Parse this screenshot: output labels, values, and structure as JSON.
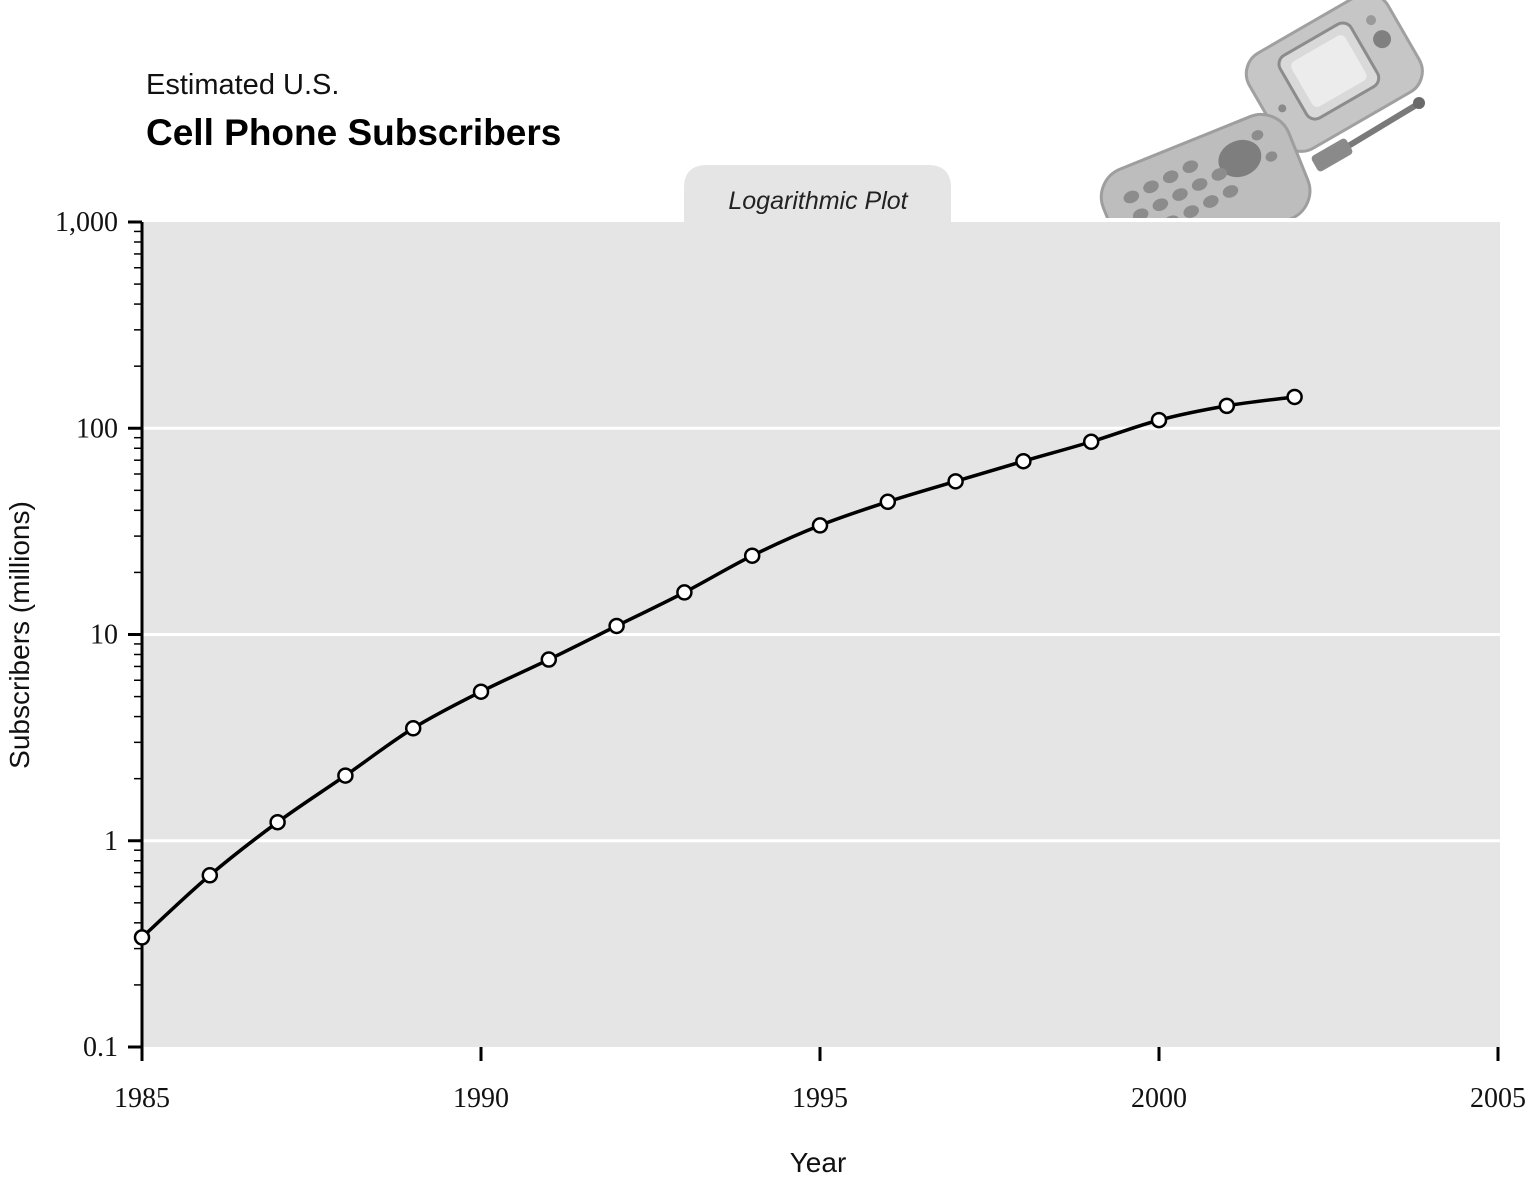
{
  "header": {
    "subtitle": "Estimated U.S.",
    "title": "Cell Phone Subscribers"
  },
  "plot_tab": "Logarithmic Plot",
  "chart_data": {
    "type": "line",
    "title": "Cell Phone Subscribers",
    "subtitle": "Estimated U.S.",
    "xlabel": "Year",
    "ylabel": "Subscribers (millions)",
    "yscale": "log",
    "xlim": [
      1985,
      2005
    ],
    "ylim": [
      0.1,
      1000
    ],
    "xticks": [
      "1985",
      "1990",
      "1995",
      "2000",
      "2005"
    ],
    "yticks": [
      "0.1",
      "1",
      "10",
      "100",
      "1,000"
    ],
    "grid": "horizontal lines at 1, 10, 100",
    "markers": "open circles",
    "series": [
      {
        "x": [
          1985,
          1986,
          1987,
          1988,
          1989,
          1990,
          1991,
          1992,
          1993,
          1994,
          1995,
          1996,
          1997,
          1998,
          1999,
          2000,
          2001,
          2002
        ],
        "values": [
          0.34,
          0.68,
          1.23,
          2.07,
          3.51,
          5.28,
          7.56,
          11.0,
          16.0,
          24.1,
          33.8,
          44.0,
          55.3,
          69.2,
          86.0,
          109.5,
          128.4,
          141.8
        ]
      }
    ]
  },
  "colors": {
    "plot_background": "#e5e5e5",
    "gridline": "#ffffff",
    "line": "#000000",
    "marker_fill": "#ffffff",
    "phone_body": "#bdbdbd",
    "phone_keys": "#808080"
  },
  "icons": [
    "flip-phone-icon"
  ]
}
